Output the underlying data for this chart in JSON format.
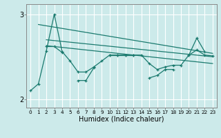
{
  "xlabel": "Humidex (Indice chaleur)",
  "background_color": "#cceaea",
  "grid_color": "#ffffff",
  "line_color": "#1a7a6e",
  "x_ticks": [
    0,
    1,
    2,
    3,
    4,
    5,
    6,
    7,
    8,
    9,
    10,
    11,
    12,
    13,
    14,
    15,
    16,
    17,
    18,
    19,
    20,
    21,
    22,
    23
  ],
  "ylim": [
    1.9,
    3.12
  ],
  "yticks": [
    2,
    3
  ],
  "series1": [
    2.1,
    2.18,
    2.57,
    3.0,
    2.56,
    2.45,
    2.32,
    2.32,
    2.38,
    2.45,
    2.52,
    2.52,
    2.52,
    2.52,
    2.52,
    2.42,
    2.35,
    2.38,
    2.4,
    2.4,
    2.52,
    2.58,
    2.52,
    2.51
  ],
  "series2": [
    null,
    null,
    2.62,
    2.62,
    2.55,
    null,
    2.22,
    2.22,
    2.37,
    null,
    2.52,
    2.52,
    2.52,
    2.52,
    null,
    2.25,
    2.28,
    2.35,
    2.35,
    null,
    2.52,
    2.72,
    2.56,
    null
  ],
  "trend1_x": [
    1,
    23
  ],
  "trend1_y": [
    2.88,
    2.54
  ],
  "trend2_x": [
    2,
    23
  ],
  "trend2_y": [
    2.7,
    2.5
  ],
  "trend3_x": [
    2,
    23
  ],
  "trend3_y": [
    2.63,
    2.42
  ]
}
